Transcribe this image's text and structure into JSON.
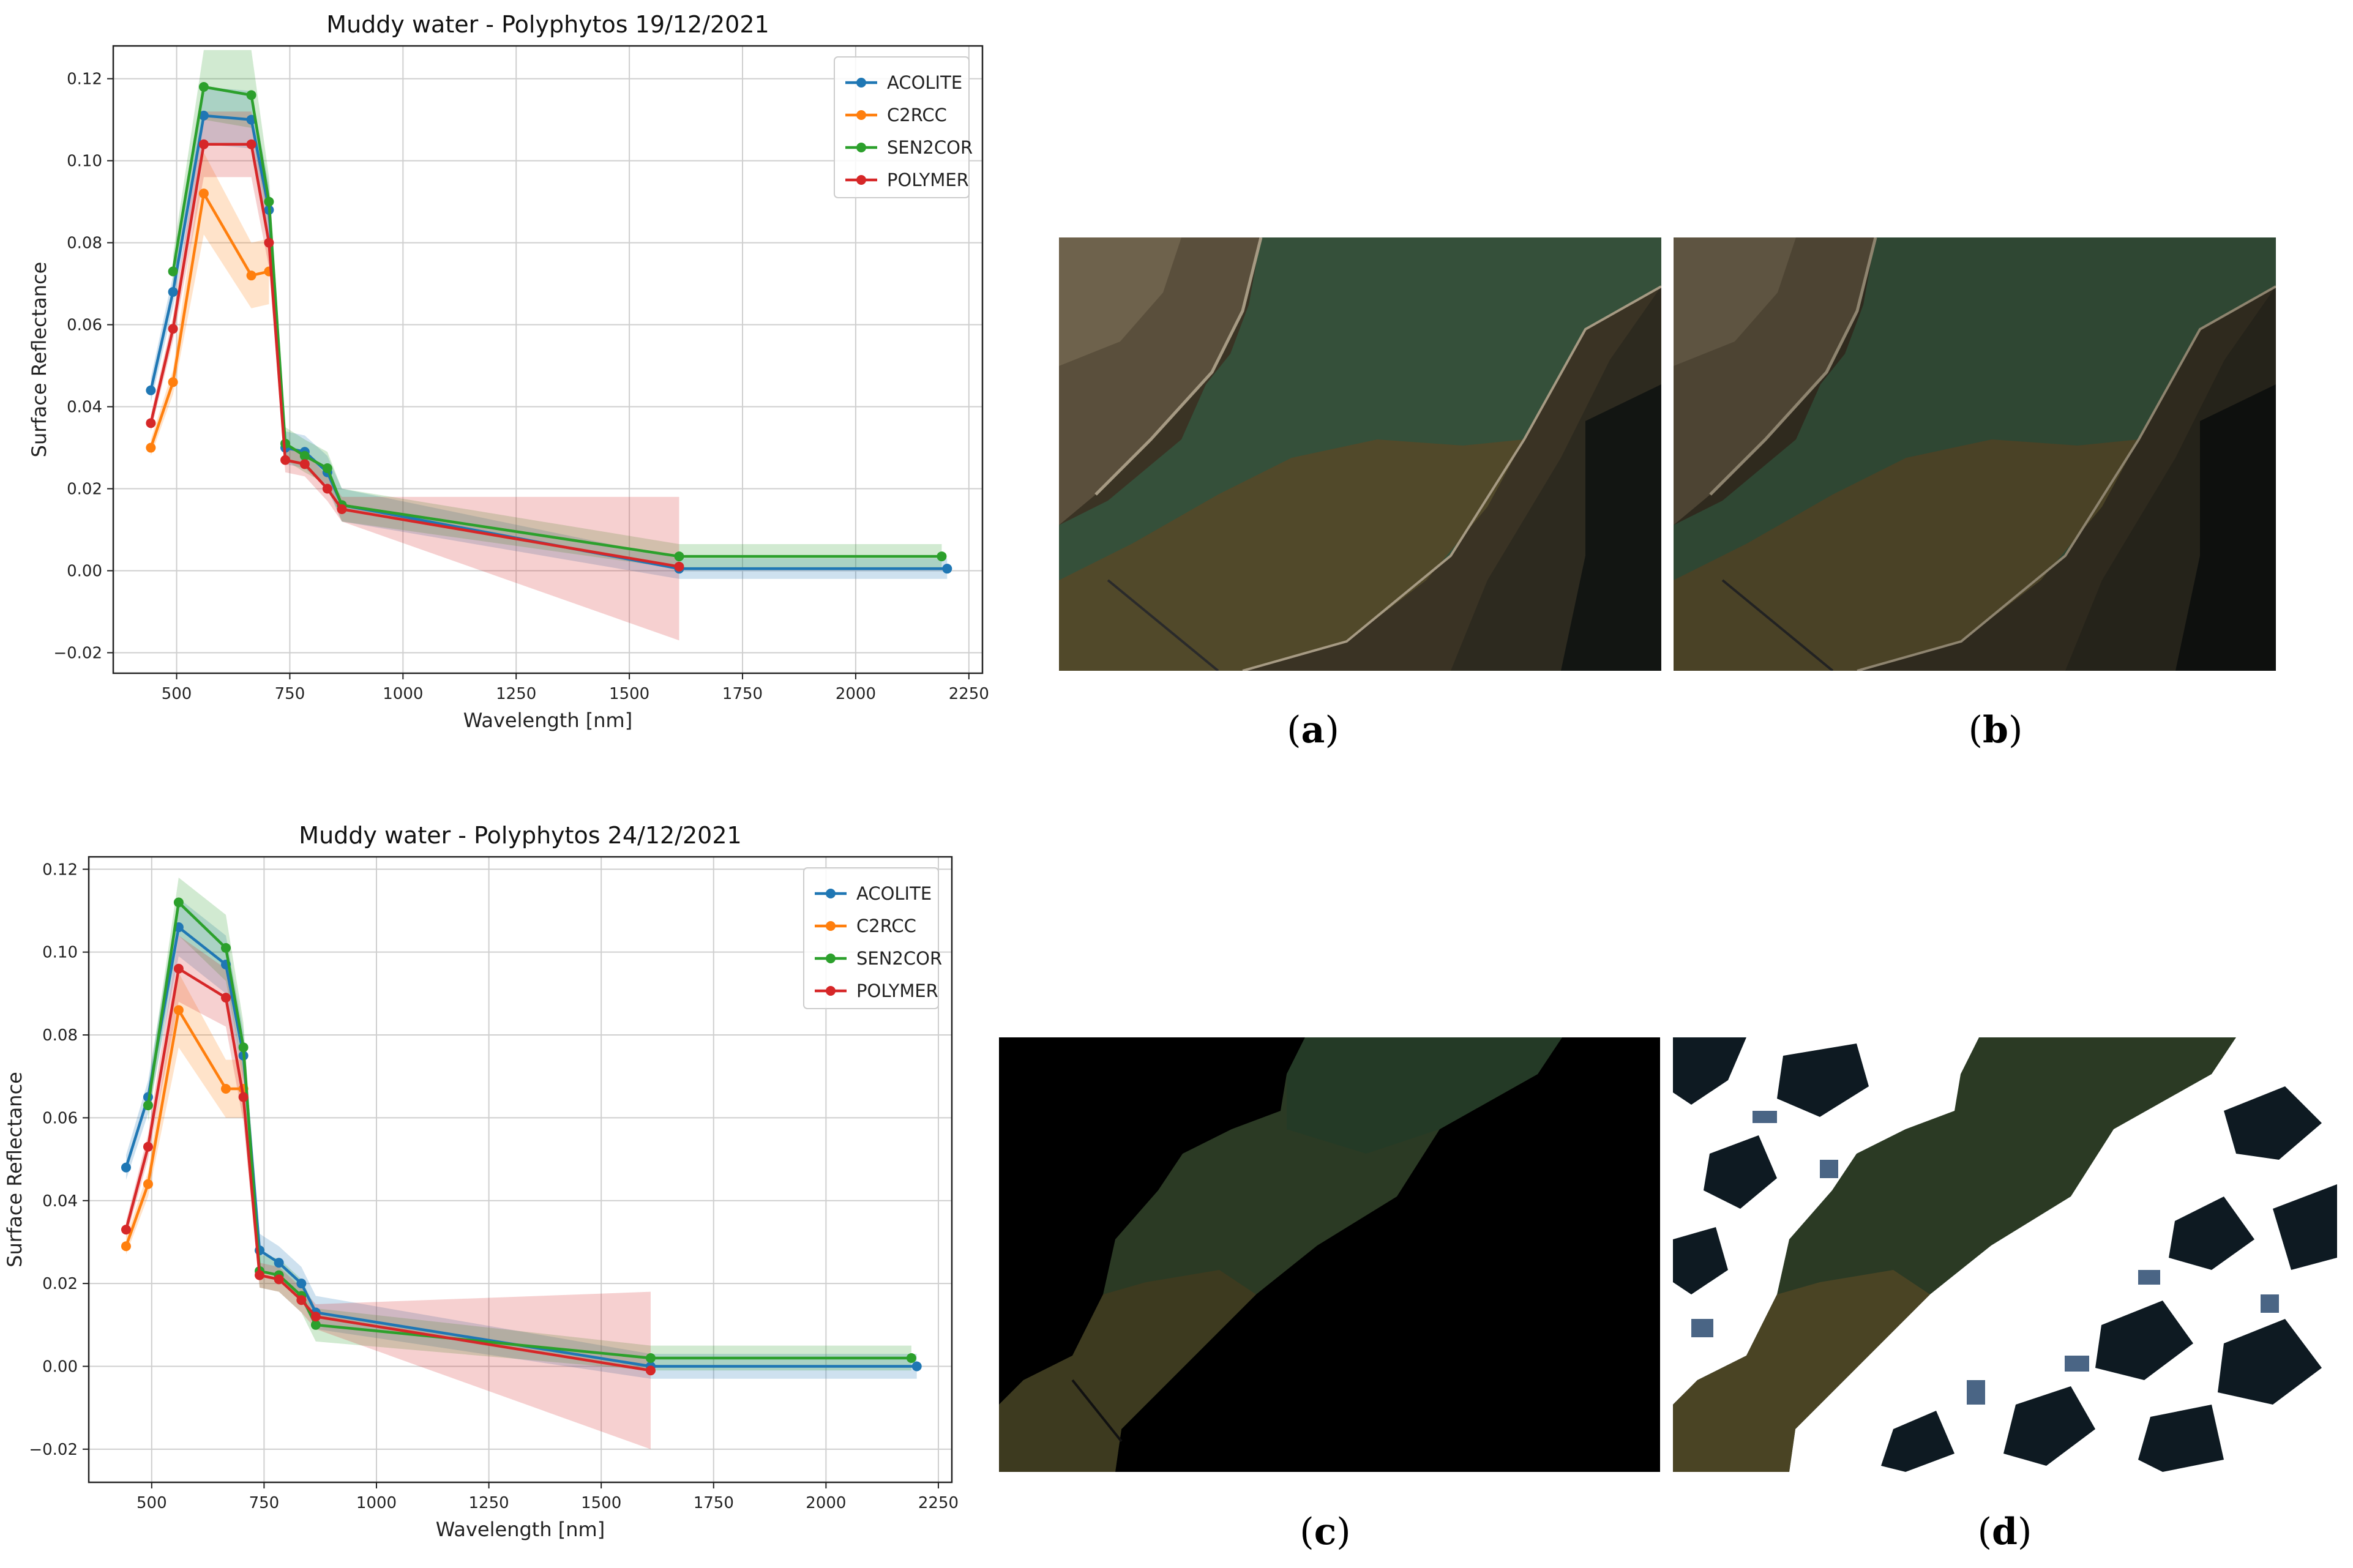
{
  "chart_data": [
    {
      "type": "line",
      "title": "Muddy water - Polyphytos 19/12/2021",
      "xlabel": "Wavelength [nm]",
      "ylabel": "Surface Reflectance",
      "xlim": [
        360,
        2280
      ],
      "ylim": [
        -0.025,
        0.128
      ],
      "xticks": [
        500,
        750,
        1000,
        1250,
        1500,
        1750,
        2000,
        2250
      ],
      "yticks": [
        -0.02,
        0.0,
        0.02,
        0.04,
        0.06,
        0.08,
        0.1,
        0.12
      ],
      "ytick_labels": [
        "−0.02",
        "0.00",
        "0.02",
        "0.04",
        "0.06",
        "0.08",
        "0.10",
        "0.12"
      ],
      "grid": true,
      "legend_position": "top-right",
      "series": [
        {
          "name": "ACOLITE",
          "color": "#1f77b4",
          "x": [
            443,
            492,
            560,
            665,
            704,
            740,
            783,
            833,
            865,
            1610,
            2202
          ],
          "y": [
            0.044,
            0.068,
            0.111,
            0.11,
            0.088,
            0.03,
            0.029,
            0.024,
            0.016,
            0.0005,
            0.0005
          ],
          "band_low": [
            0.041,
            0.064,
            0.104,
            0.103,
            0.082,
            0.026,
            0.025,
            0.02,
            0.012,
            -0.002,
            -0.002
          ],
          "band_high": [
            0.047,
            0.072,
            0.118,
            0.117,
            0.094,
            0.034,
            0.033,
            0.028,
            0.02,
            0.003,
            0.003
          ]
        },
        {
          "name": "C2RCC",
          "color": "#ff7f0e",
          "x": [
            443,
            492,
            560,
            665,
            704
          ],
          "y": [
            0.03,
            0.046,
            0.092,
            0.072,
            0.073
          ],
          "band_low": [
            0.028,
            0.043,
            0.082,
            0.064,
            0.065
          ],
          "band_high": [
            0.032,
            0.049,
            0.102,
            0.08,
            0.081
          ]
        },
        {
          "name": "SEN2COR",
          "color": "#2ca02c",
          "x": [
            492,
            560,
            665,
            704,
            740,
            783,
            833,
            865,
            1610,
            2190
          ],
          "y": [
            0.073,
            0.118,
            0.116,
            0.09,
            0.031,
            0.028,
            0.025,
            0.016,
            0.0035,
            0.0035
          ],
          "band_low": [
            0.069,
            0.11,
            0.108,
            0.084,
            0.027,
            0.024,
            0.021,
            0.012,
            0.0005,
            0.0005
          ],
          "band_high": [
            0.077,
            0.127,
            0.127,
            0.096,
            0.035,
            0.032,
            0.029,
            0.02,
            0.0065,
            0.0065
          ]
        },
        {
          "name": "POLYMER",
          "color": "#d62728",
          "x": [
            443,
            492,
            560,
            665,
            704,
            740,
            783,
            833,
            865,
            1610
          ],
          "y": [
            0.036,
            0.059,
            0.104,
            0.104,
            0.08,
            0.027,
            0.026,
            0.02,
            0.015,
            0.001
          ],
          "band_low": [
            0.034,
            0.056,
            0.096,
            0.096,
            0.074,
            0.024,
            0.023,
            0.017,
            0.012,
            -0.017
          ],
          "band_high": [
            0.038,
            0.062,
            0.112,
            0.112,
            0.086,
            0.03,
            0.029,
            0.023,
            0.018,
            0.018
          ]
        }
      ]
    },
    {
      "type": "line",
      "title": "Muddy water - Polyphytos 24/12/2021",
      "xlabel": "Wavelength [nm]",
      "ylabel": "Surface Reflectance",
      "xlim": [
        360,
        2280
      ],
      "ylim": [
        -0.028,
        0.123
      ],
      "xticks": [
        500,
        750,
        1000,
        1250,
        1500,
        1750,
        2000,
        2250
      ],
      "yticks": [
        -0.02,
        0.0,
        0.02,
        0.04,
        0.06,
        0.08,
        0.1,
        0.12
      ],
      "ytick_labels": [
        "−0.02",
        "0.00",
        "0.02",
        "0.04",
        "0.06",
        "0.08",
        "0.10",
        "0.12"
      ],
      "grid": true,
      "legend_position": "top-right",
      "series": [
        {
          "name": "ACOLITE",
          "color": "#1f77b4",
          "x": [
            443,
            492,
            560,
            665,
            704,
            740,
            783,
            833,
            865,
            1610,
            2202
          ],
          "y": [
            0.048,
            0.065,
            0.106,
            0.097,
            0.075,
            0.028,
            0.025,
            0.02,
            0.013,
            0.0,
            0.0
          ],
          "band_low": [
            0.045,
            0.061,
            0.099,
            0.09,
            0.069,
            0.024,
            0.021,
            0.016,
            0.009,
            -0.003,
            -0.003
          ],
          "band_high": [
            0.051,
            0.069,
            0.113,
            0.104,
            0.081,
            0.032,
            0.029,
            0.024,
            0.017,
            0.003,
            0.003
          ]
        },
        {
          "name": "C2RCC",
          "color": "#ff7f0e",
          "x": [
            443,
            492,
            560,
            665,
            704
          ],
          "y": [
            0.029,
            0.044,
            0.086,
            0.067,
            0.067
          ],
          "band_low": [
            0.027,
            0.041,
            0.077,
            0.06,
            0.06
          ],
          "band_high": [
            0.031,
            0.047,
            0.095,
            0.074,
            0.074
          ]
        },
        {
          "name": "SEN2COR",
          "color": "#2ca02c",
          "x": [
            492,
            560,
            665,
            704,
            740,
            783,
            833,
            865,
            1610,
            2190
          ],
          "y": [
            0.063,
            0.112,
            0.101,
            0.077,
            0.023,
            0.022,
            0.017,
            0.01,
            0.002,
            0.002
          ],
          "band_low": [
            0.059,
            0.104,
            0.093,
            0.071,
            0.019,
            0.018,
            0.013,
            0.006,
            -0.001,
            -0.001
          ],
          "band_high": [
            0.067,
            0.118,
            0.109,
            0.083,
            0.027,
            0.026,
            0.021,
            0.014,
            0.005,
            0.005
          ]
        },
        {
          "name": "POLYMER",
          "color": "#d62728",
          "x": [
            443,
            492,
            560,
            665,
            704,
            740,
            783,
            833,
            865,
            1610
          ],
          "y": [
            0.033,
            0.053,
            0.096,
            0.089,
            0.065,
            0.022,
            0.021,
            0.016,
            0.012,
            -0.001
          ],
          "band_low": [
            0.031,
            0.05,
            0.088,
            0.082,
            0.059,
            0.019,
            0.018,
            0.013,
            0.009,
            -0.02
          ],
          "band_high": [
            0.035,
            0.056,
            0.104,
            0.096,
            0.071,
            0.025,
            0.024,
            0.019,
            0.015,
            0.018
          ]
        }
      ]
    }
  ],
  "captions": {
    "a": "a",
    "b": "b",
    "c": "c",
    "d": "d"
  },
  "panel_colors": {
    "water_green": "#35503a",
    "water_brown": "#51492a",
    "land_dark": "#3a3324",
    "land_light": "#8b7d64",
    "masked_black": "#000000",
    "cloud_white": "#ffffff",
    "mask_blue": "#1d3f66"
  }
}
